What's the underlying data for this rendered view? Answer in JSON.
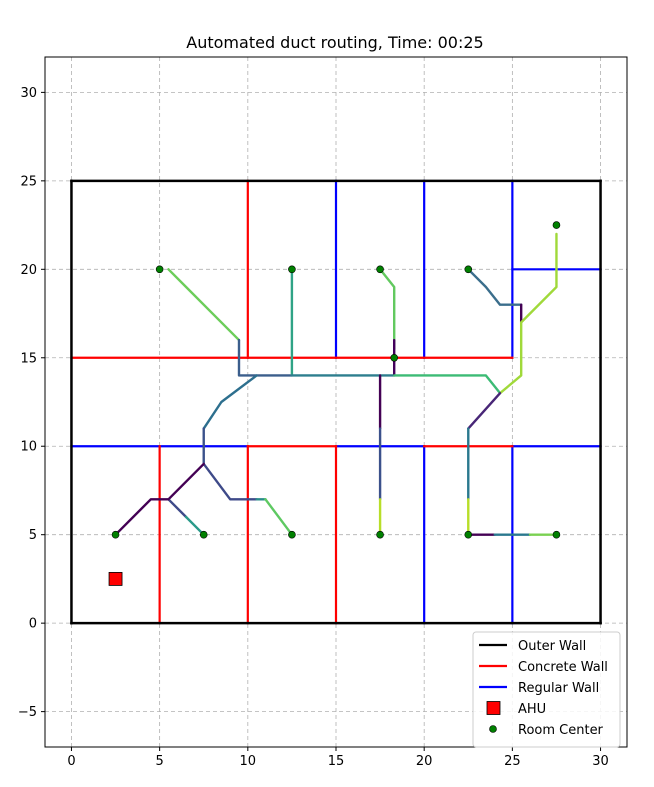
{
  "chart_data": {
    "type": "line",
    "title": "Automated duct routing, Time: 00:25",
    "xlabel": "",
    "ylabel": "",
    "xlim": [
      -1.5,
      31.5
    ],
    "ylim": [
      -7,
      32
    ],
    "x_ticks": [
      0,
      5,
      10,
      15,
      20,
      25,
      30
    ],
    "y_ticks": [
      -5,
      0,
      5,
      10,
      15,
      20,
      25,
      30
    ],
    "grid": true,
    "legend_position": "lower-right",
    "colors": {
      "outer_wall": "#000000",
      "concrete_wall": "#ff0000",
      "regular_wall": "#0000ff",
      "ahu": "#ff0000",
      "room_center": "#008000",
      "grid": "#b0b0b0"
    },
    "legend": [
      {
        "label": "Outer Wall",
        "kind": "line",
        "color": "#000000"
      },
      {
        "label": "Concrete Wall",
        "kind": "line",
        "color": "#ff0000"
      },
      {
        "label": "Regular Wall",
        "kind": "line",
        "color": "#0000ff"
      },
      {
        "label": "AHU",
        "kind": "square",
        "color": "#ff0000"
      },
      {
        "label": "Room Center",
        "kind": "circle",
        "color": "#008000"
      }
    ],
    "outer_walls": [
      [
        [
          0,
          0
        ],
        [
          30,
          0
        ]
      ],
      [
        [
          30,
          0
        ],
        [
          30,
          25
        ]
      ],
      [
        [
          30,
          25
        ],
        [
          0,
          25
        ]
      ],
      [
        [
          0,
          25
        ],
        [
          0,
          0
        ]
      ]
    ],
    "concrete_walls": [
      [
        [
          0,
          15
        ],
        [
          25,
          15
        ]
      ],
      [
        [
          10,
          15
        ],
        [
          10,
          25
        ]
      ],
      [
        [
          5,
          0
        ],
        [
          5,
          10
        ]
      ],
      [
        [
          10,
          0
        ],
        [
          10,
          10
        ]
      ],
      [
        [
          15,
          0
        ],
        [
          15,
          10
        ]
      ],
      [
        [
          10,
          10
        ],
        [
          15,
          10
        ]
      ],
      [
        [
          20,
          10
        ],
        [
          25,
          10
        ]
      ]
    ],
    "regular_walls": [
      [
        [
          15,
          15
        ],
        [
          15,
          25
        ]
      ],
      [
        [
          20,
          15
        ],
        [
          20,
          25
        ]
      ],
      [
        [
          25,
          15
        ],
        [
          25,
          25
        ]
      ],
      [
        [
          25,
          20
        ],
        [
          30,
          20
        ]
      ],
      [
        [
          0,
          10
        ],
        [
          10,
          10
        ]
      ],
      [
        [
          15,
          10
        ],
        [
          20,
          10
        ]
      ],
      [
        [
          25,
          10
        ],
        [
          30,
          10
        ]
      ],
      [
        [
          20,
          0
        ],
        [
          20,
          10
        ]
      ],
      [
        [
          25,
          0
        ],
        [
          25,
          10
        ]
      ]
    ],
    "ahu": [
      [
        2.5,
        2.5
      ]
    ],
    "room_centers": [
      [
        5,
        20
      ],
      [
        12.5,
        20
      ],
      [
        17.5,
        20
      ],
      [
        22.5,
        20
      ],
      [
        27.5,
        22.5
      ],
      [
        18.3,
        15
      ],
      [
        2.5,
        5
      ],
      [
        7.5,
        5
      ],
      [
        12.5,
        5
      ],
      [
        17.5,
        5
      ],
      [
        22.5,
        5
      ],
      [
        27.5,
        5
      ]
    ],
    "duct_segments": [
      {
        "points": [
          [
            5.5,
            20
          ],
          [
            6.5,
            19
          ],
          [
            8,
            17.5
          ],
          [
            9.5,
            16
          ]
        ],
        "color": "#6ccd5a"
      },
      {
        "points": [
          [
            9.5,
            16
          ],
          [
            9.5,
            14
          ],
          [
            10.5,
            14
          ],
          [
            12.5,
            14
          ]
        ],
        "color": "#3b5e8c"
      },
      {
        "points": [
          [
            12.5,
            20
          ],
          [
            12.5,
            17
          ],
          [
            12.5,
            14
          ]
        ],
        "color": "#2fa386"
      },
      {
        "points": [
          [
            12.5,
            14
          ],
          [
            18.3,
            14
          ]
        ],
        "color": "#2d7e8e"
      },
      {
        "points": [
          [
            17.5,
            20
          ],
          [
            18.3,
            19
          ],
          [
            18.3,
            15.5
          ]
        ],
        "color": "#62c95f"
      },
      {
        "points": [
          [
            18.3,
            16
          ],
          [
            18.3,
            14
          ]
        ],
        "color": "#44015c"
      },
      {
        "points": [
          [
            18.3,
            14
          ],
          [
            23.5,
            14
          ],
          [
            24.3,
            13
          ]
        ],
        "color": "#3cbb75"
      },
      {
        "points": [
          [
            22.5,
            20
          ],
          [
            23.5,
            19
          ],
          [
            24.3,
            18
          ],
          [
            25.5,
            18
          ]
        ],
        "color": "#3b6e8c"
      },
      {
        "points": [
          [
            25.5,
            18
          ],
          [
            25.5,
            17
          ]
        ],
        "color": "#440154"
      },
      {
        "points": [
          [
            27.5,
            22
          ],
          [
            27.5,
            19
          ],
          [
            25.5,
            17
          ],
          [
            25.5,
            14
          ],
          [
            24.3,
            13
          ]
        ],
        "color": "#a0d93a"
      },
      {
        "points": [
          [
            24.3,
            13
          ],
          [
            22.5,
            11
          ]
        ],
        "color": "#482677"
      },
      {
        "points": [
          [
            22.5,
            11
          ],
          [
            22.5,
            7
          ]
        ],
        "color": "#2a788e"
      },
      {
        "points": [
          [
            22.5,
            7
          ],
          [
            22.5,
            5
          ]
        ],
        "color": "#b8de29"
      },
      {
        "points": [
          [
            22.5,
            5
          ],
          [
            24,
            5
          ]
        ],
        "color": "#440154"
      },
      {
        "points": [
          [
            24,
            5
          ],
          [
            26,
            5
          ]
        ],
        "color": "#2a788e"
      },
      {
        "points": [
          [
            26,
            5
          ],
          [
            27.5,
            5
          ]
        ],
        "color": "#7ad151"
      },
      {
        "points": [
          [
            17.5,
            14
          ],
          [
            17.5,
            11
          ]
        ],
        "color": "#440154"
      },
      {
        "points": [
          [
            17.5,
            11
          ],
          [
            17.5,
            7
          ]
        ],
        "color": "#3b518b"
      },
      {
        "points": [
          [
            17.5,
            7
          ],
          [
            17.5,
            5
          ]
        ],
        "color": "#b8de29"
      },
      {
        "points": [
          [
            10.5,
            14
          ],
          [
            8.5,
            12.5
          ],
          [
            7.5,
            11
          ]
        ],
        "color": "#2d6f8e"
      },
      {
        "points": [
          [
            7.5,
            11
          ],
          [
            7.5,
            9
          ]
        ],
        "color": "#3b528b"
      },
      {
        "points": [
          [
            7.5,
            9
          ],
          [
            9,
            7
          ],
          [
            10.5,
            7
          ]
        ],
        "color": "#3e4a89"
      },
      {
        "points": [
          [
            7.5,
            9
          ],
          [
            5.5,
            7
          ]
        ],
        "color": "#440154"
      },
      {
        "points": [
          [
            10.5,
            7
          ],
          [
            11,
            7
          ]
        ],
        "color": "#2a8c8a"
      },
      {
        "points": [
          [
            11,
            7
          ],
          [
            12.5,
            5
          ]
        ],
        "color": "#5ec962"
      },
      {
        "points": [
          [
            5.5,
            7
          ],
          [
            6.5,
            6
          ]
        ],
        "color": "#3e4a89"
      },
      {
        "points": [
          [
            6.5,
            6
          ],
          [
            7.5,
            5
          ]
        ],
        "color": "#2a9a8a"
      },
      {
        "points": [
          [
            5.5,
            7
          ],
          [
            4.5,
            7
          ],
          [
            2.5,
            5
          ]
        ],
        "color": "#440154"
      }
    ]
  }
}
